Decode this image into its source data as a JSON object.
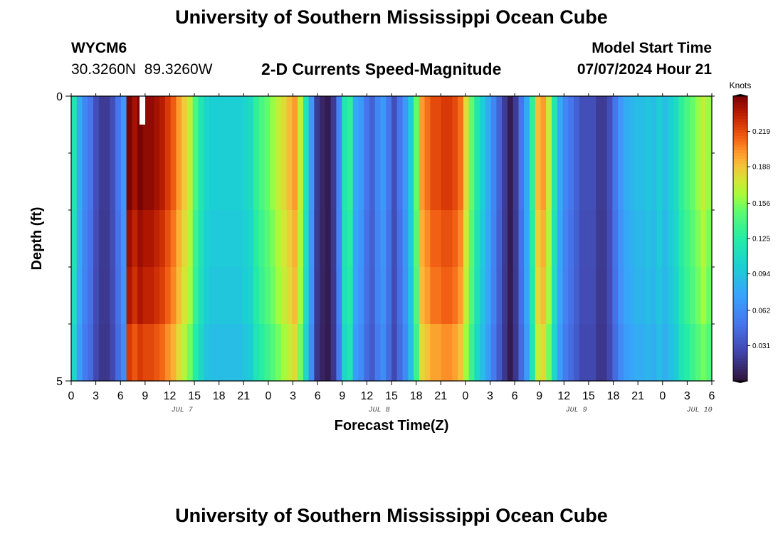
{
  "page": {
    "title": "University of Southern Mississippi Ocean Cube",
    "footer_title": "University of Southern Mississippi Ocean Cube",
    "station_id": "WYCM6",
    "station_coords": "30.3260N  89.3260W",
    "subtitle": "2-D Currents Speed-Magnitude",
    "model_start_label": "Model Start Time",
    "model_start_value": "07/07/2024 Hour 21"
  },
  "chart_data": {
    "type": "heatmap",
    "title": "2-D Currents Speed-Magnitude",
    "xlabel": "Forecast Time(Z)",
    "ylabel": "Depth (ft)",
    "ylim": [
      0,
      5
    ],
    "y_tick_labels": [
      "0",
      "5"
    ],
    "x_tick_labels": [
      "0",
      "3",
      "6",
      "9",
      "12",
      "15",
      "18",
      "21",
      "0",
      "3",
      "6",
      "9",
      "12",
      "15",
      "18",
      "21",
      "0",
      "3",
      "6",
      "9",
      "12",
      "15",
      "18",
      "21",
      "0",
      "3",
      "6"
    ],
    "date_labels": [
      {
        "label": "JUL 7",
        "tick_index": 4.5
      },
      {
        "label": "JUL 8",
        "tick_index": 12.5
      },
      {
        "label": "JUL 9",
        "tick_index": 20.5
      },
      {
        "label": "JUL 10",
        "tick_index": 25.5
      }
    ],
    "colorbar": {
      "unit_label": "Knots",
      "min": 0.0,
      "max": 0.25,
      "tick_labels": [
        "0.031",
        "0.062",
        "0.094",
        "0.125",
        "0.156",
        "0.188",
        "0.219"
      ]
    },
    "depth_layers": 5,
    "hours_per_step": 1,
    "speed_profile_knots": [
      0.12,
      0.08,
      0.06,
      0.05,
      0.03,
      0.02,
      0.02,
      0.03,
      0.05,
      0.07,
      0.25,
      0.24,
      0.25,
      0.245,
      0.245,
      0.24,
      0.235,
      0.225,
      0.215,
      0.2,
      0.185,
      0.17,
      0.14,
      0.12,
      0.105,
      0.1,
      0.1,
      0.1,
      0.1,
      0.1,
      0.1,
      0.105,
      0.11,
      0.13,
      0.14,
      0.15,
      0.16,
      0.17,
      0.18,
      0.19,
      0.2,
      0.17,
      0.12,
      0.07,
      0.02,
      0.01,
      0.005,
      0.02,
      0.06,
      0.12,
      0.13,
      0.08,
      0.07,
      0.05,
      0.04,
      0.06,
      0.07,
      0.05,
      0.03,
      0.05,
      0.07,
      0.1,
      0.15,
      0.2,
      0.21,
      0.22,
      0.22,
      0.225,
      0.225,
      0.22,
      0.21,
      0.18,
      0.15,
      0.12,
      0.1,
      0.08,
      0.06,
      0.04,
      0.02,
      0.005,
      0.02,
      0.05,
      0.08,
      0.13,
      0.19,
      0.2,
      0.17,
      0.12,
      0.08,
      0.06,
      0.05,
      0.04,
      0.03,
      0.03,
      0.03,
      0.02,
      0.02,
      0.03,
      0.05,
      0.07,
      0.08,
      0.085,
      0.09,
      0.09,
      0.095,
      0.09,
      0.1,
      0.09,
      0.1,
      0.11,
      0.13,
      0.14,
      0.15,
      0.16,
      0.17,
      0.16
    ],
    "depth_factors": [
      1.0,
      1.0,
      0.97,
      0.95,
      0.9
    ]
  }
}
